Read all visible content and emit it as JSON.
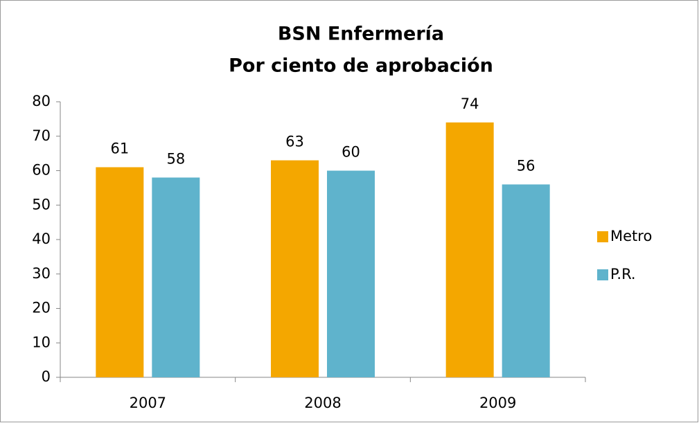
{
  "chart_data": {
    "type": "bar",
    "title": [
      "BSN Enfermería",
      "Por ciento de aprobación"
    ],
    "categories": [
      "2007",
      "2008",
      "2009"
    ],
    "series": [
      {
        "name": "Metro",
        "color": "#F4A700",
        "values": [
          61,
          63,
          74
        ]
      },
      {
        "name": "P.R.",
        "color": "#5FB3CC",
        "values": [
          58,
          60,
          56
        ]
      }
    ],
    "ylim": [
      0,
      80
    ],
    "yticks": [
      0,
      10,
      20,
      30,
      40,
      50,
      60,
      70,
      80
    ],
    "legend": "right",
    "data_labels": true
  }
}
